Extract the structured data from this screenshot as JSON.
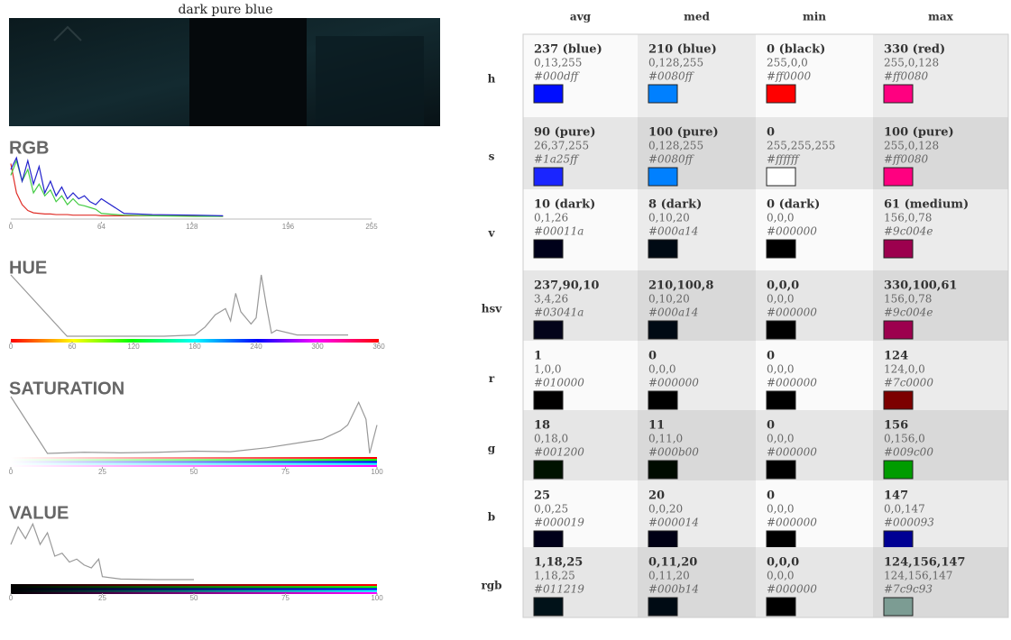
{
  "title": "dark pure blue",
  "histograms": [
    {
      "type": "line",
      "title": "RGB",
      "xlim": [
        0,
        255
      ],
      "xticks": [
        0,
        64,
        128,
        196,
        255
      ],
      "ylim": [
        0,
        100
      ],
      "x": [
        0,
        4,
        8,
        12,
        16,
        20,
        24,
        28,
        32,
        36,
        40,
        44,
        48,
        52,
        56,
        60,
        64,
        80,
        100,
        130,
        150
      ],
      "series": [
        {
          "color": "#e0302a",
          "values": [
            90,
            40,
            20,
            10,
            6,
            5,
            4,
            4,
            3,
            3,
            3,
            2,
            2,
            2,
            2,
            2,
            1,
            1,
            1,
            1,
            0
          ]
        },
        {
          "color": "#44cc44",
          "values": [
            70,
            95,
            60,
            80,
            40,
            55,
            35,
            45,
            25,
            35,
            20,
            30,
            20,
            18,
            15,
            12,
            5,
            2,
            1,
            0,
            0
          ]
        },
        {
          "color": "#2222cc",
          "values": [
            80,
            100,
            60,
            95,
            55,
            85,
            40,
            60,
            35,
            50,
            30,
            40,
            30,
            35,
            25,
            20,
            30,
            5,
            3,
            2,
            1
          ]
        }
      ]
    },
    {
      "type": "line",
      "title": "HUE",
      "xlim": [
        0,
        360
      ],
      "xticks": [
        0,
        60,
        120,
        180,
        240,
        300,
        360
      ],
      "ylim": [
        0,
        100
      ],
      "x": [
        0,
        55,
        100,
        150,
        180,
        190,
        200,
        210,
        215,
        220,
        225,
        230,
        235,
        240,
        245,
        250,
        255,
        260,
        280,
        330
      ],
      "series": [
        {
          "color": "#999999",
          "values": [
            100,
            0,
            0,
            0,
            2,
            15,
            35,
            45,
            25,
            70,
            40,
            30,
            20,
            30,
            100,
            50,
            5,
            10,
            2,
            2
          ]
        }
      ]
    },
    {
      "type": "line",
      "title": "SATURATION",
      "xlim": [
        0,
        100
      ],
      "xticks": [
        0,
        25,
        50,
        75,
        100
      ],
      "ylim": [
        0,
        100
      ],
      "x": [
        0,
        10,
        20,
        30,
        40,
        50,
        60,
        70,
        80,
        85,
        90,
        92,
        95,
        97,
        98,
        100
      ],
      "series": [
        {
          "color": "#999999",
          "values": [
            100,
            0,
            2,
            1,
            2,
            4,
            3,
            10,
            20,
            25,
            40,
            50,
            90,
            60,
            0,
            50
          ]
        }
      ]
    },
    {
      "type": "line",
      "title": "VALUE",
      "xlim": [
        0,
        100
      ],
      "xticks": [
        0,
        25,
        50,
        75,
        100
      ],
      "ylim": [
        0,
        100
      ],
      "x": [
        0,
        2,
        4,
        6,
        8,
        10,
        12,
        14,
        16,
        18,
        20,
        22,
        24,
        25,
        30,
        40,
        50
      ],
      "series": [
        {
          "color": "#999999",
          "values": [
            60,
            90,
            70,
            95,
            60,
            80,
            40,
            45,
            30,
            35,
            25,
            20,
            35,
            5,
            1,
            0,
            0
          ]
        }
      ]
    }
  ],
  "table": {
    "columns": [
      "avg",
      "med",
      "min",
      "max"
    ],
    "rows": [
      {
        "label": "h",
        "cells": [
          {
            "value": "237 (blue)",
            "rgb": "0,13,255",
            "hex": "#000dff"
          },
          {
            "value": "210 (blue)",
            "rgb": "0,128,255",
            "hex": "#0080ff"
          },
          {
            "value": "0 (black)",
            "rgb": "255,0,0",
            "hex": "#ff0000"
          },
          {
            "value": "330 (red)",
            "rgb": "255,0,128",
            "hex": "#ff0080"
          }
        ]
      },
      {
        "label": "s",
        "cells": [
          {
            "value": "90 (pure)",
            "rgb": "26,37,255",
            "hex": "#1a25ff"
          },
          {
            "value": "100 (pure)",
            "rgb": "0,128,255",
            "hex": "#0080ff"
          },
          {
            "value": "0",
            "rgb": "255,255,255",
            "hex": "#ffffff"
          },
          {
            "value": "100 (pure)",
            "rgb": "255,0,128",
            "hex": "#ff0080"
          }
        ]
      },
      {
        "label": "v",
        "cells": [
          {
            "value": "10 (dark)",
            "rgb": "0,1,26",
            "hex": "#00011a"
          },
          {
            "value": "8 (dark)",
            "rgb": "0,10,20",
            "hex": "#000a14"
          },
          {
            "value": "0 (dark)",
            "rgb": "0,0,0",
            "hex": "#000000"
          },
          {
            "value": "61 (medium)",
            "rgb": "156,0,78",
            "hex": "#9c004e"
          }
        ]
      },
      {
        "label": "hsv",
        "cells": [
          {
            "value": "237,90,10",
            "rgb": "3,4,26",
            "hex": "#03041a"
          },
          {
            "value": "210,100,8",
            "rgb": "0,10,20",
            "hex": "#000a14"
          },
          {
            "value": "0,0,0",
            "rgb": "0,0,0",
            "hex": "#000000"
          },
          {
            "value": "330,100,61",
            "rgb": "156,0,78",
            "hex": "#9c004e"
          }
        ]
      },
      {
        "label": "r",
        "cells": [
          {
            "value": "1",
            "rgb": "1,0,0",
            "hex": "#010000"
          },
          {
            "value": "0",
            "rgb": "0,0,0",
            "hex": "#000000"
          },
          {
            "value": "0",
            "rgb": "0,0,0",
            "hex": "#000000"
          },
          {
            "value": "124",
            "rgb": "124,0,0",
            "hex": "#7c0000"
          }
        ]
      },
      {
        "label": "g",
        "cells": [
          {
            "value": "18",
            "rgb": "0,18,0",
            "hex": "#001200"
          },
          {
            "value": "11",
            "rgb": "0,11,0",
            "hex": "#000b00"
          },
          {
            "value": "0",
            "rgb": "0,0,0",
            "hex": "#000000"
          },
          {
            "value": "156",
            "rgb": "0,156,0",
            "hex": "#009c00"
          }
        ]
      },
      {
        "label": "b",
        "cells": [
          {
            "value": "25",
            "rgb": "0,0,25",
            "hex": "#000019"
          },
          {
            "value": "20",
            "rgb": "0,0,20",
            "hex": "#000014"
          },
          {
            "value": "0",
            "rgb": "0,0,0",
            "hex": "#000000"
          },
          {
            "value": "147",
            "rgb": "0,0,147",
            "hex": "#000093"
          }
        ]
      },
      {
        "label": "rgb",
        "cells": [
          {
            "value": "1,18,25",
            "rgb": "1,18,25",
            "hex": "#011219"
          },
          {
            "value": "0,11,20",
            "rgb": "0,11,20",
            "hex": "#000b14"
          },
          {
            "value": "0,0,0",
            "rgb": "0,0,0",
            "hex": "#000000"
          },
          {
            "value": "124,156,147",
            "rgb": "124,156,147",
            "hex": "#7c9c93"
          }
        ]
      }
    ]
  }
}
